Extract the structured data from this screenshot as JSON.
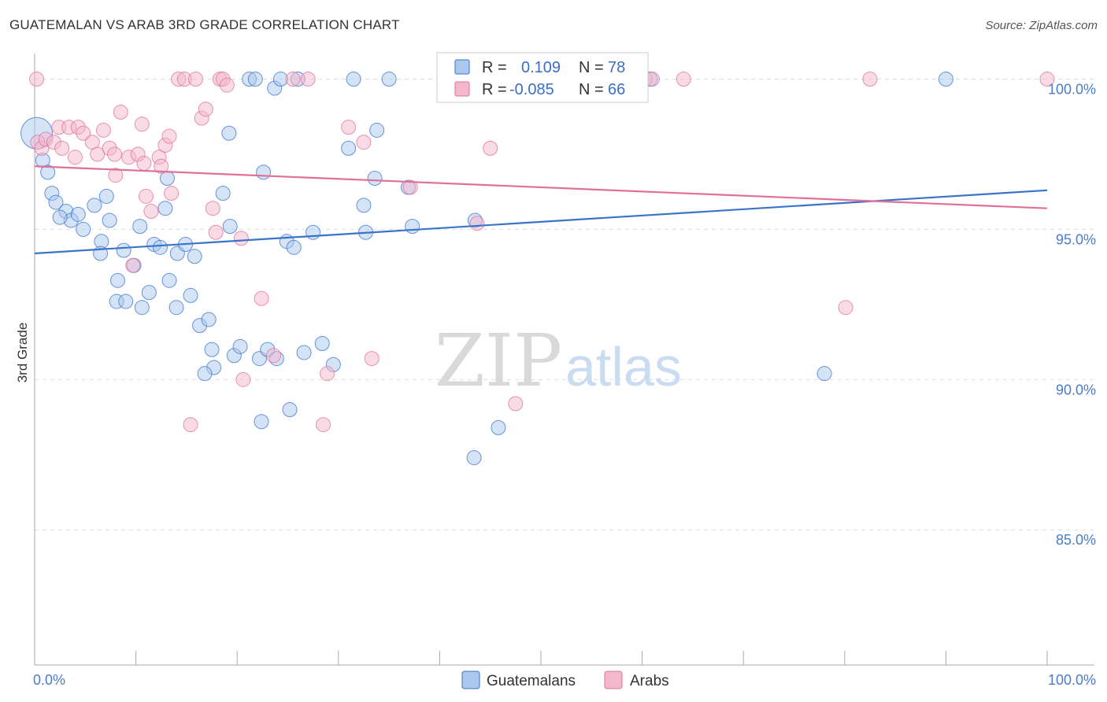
{
  "title": "GUATEMALAN VS ARAB 3RD GRADE CORRELATION CHART",
  "source": "Source: ZipAtlas.com",
  "watermark": {
    "zip": "ZIP",
    "atlas": "atlas"
  },
  "colors": {
    "blue": "#3a74c9",
    "blue_fill": "#aac8ee",
    "pink": "#e0709a",
    "pink_fill": "#f4b8cc",
    "tick": "#4a7cc9",
    "grid": "#dddddd"
  },
  "chart_data": {
    "type": "scatter",
    "title": "GUATEMALAN VS ARAB 3RD GRADE CORRELATION CHART",
    "xlabel": "",
    "ylabel": "3rd Grade",
    "xlim": [
      0,
      100
    ],
    "ylim": [
      80.5,
      100.8
    ],
    "x_tick_labels": [
      {
        "value": 0,
        "label": "0.0%"
      },
      {
        "value": 100,
        "label": "100.0%"
      }
    ],
    "y_ticks": [
      {
        "value": 85,
        "label": "85.0%"
      },
      {
        "value": 90,
        "label": "90.0%"
      },
      {
        "value": 95,
        "label": "95.0%"
      },
      {
        "value": 100,
        "label": "100.0%"
      }
    ],
    "grid": true,
    "legend_position": "top-center",
    "stats": [
      {
        "r_label": "R =",
        "r": "0.109",
        "n_label": "N =",
        "n": "78"
      },
      {
        "r_label": "R =",
        "r": "-0.085",
        "n_label": "N =",
        "n": "66"
      }
    ],
    "series": [
      {
        "name": "Guatemalans",
        "color": "#3a74c9",
        "trend": [
          [
            0,
            94.2
          ],
          [
            100,
            96.3
          ]
        ],
        "points": [
          [
            0.2,
            98.2
          ],
          [
            0.8,
            97.3
          ],
          [
            1.3,
            96.9
          ],
          [
            1.7,
            96.2
          ],
          [
            2.1,
            95.9
          ],
          [
            3.1,
            95.6
          ],
          [
            3.6,
            95.3
          ],
          [
            2.5,
            95.4
          ],
          [
            4.3,
            95.5
          ],
          [
            4.8,
            95.0
          ],
          [
            5.9,
            95.8
          ],
          [
            7.1,
            96.1
          ],
          [
            6.6,
            94.6
          ],
          [
            7.4,
            95.3
          ],
          [
            6.5,
            94.2
          ],
          [
            8.2,
            93.3
          ],
          [
            8.8,
            94.3
          ],
          [
            9.8,
            93.8
          ],
          [
            10.4,
            95.1
          ],
          [
            11.3,
            92.9
          ],
          [
            8.1,
            92.6
          ],
          [
            9.0,
            92.6
          ],
          [
            10.6,
            92.4
          ],
          [
            11.8,
            94.5
          ],
          [
            12.4,
            94.4
          ],
          [
            12.9,
            95.7
          ],
          [
            13.1,
            96.7
          ],
          [
            13.3,
            93.3
          ],
          [
            14.0,
            92.4
          ],
          [
            14.1,
            94.2
          ],
          [
            14.9,
            94.5
          ],
          [
            15.4,
            92.8
          ],
          [
            15.8,
            94.1
          ],
          [
            16.3,
            91.8
          ],
          [
            17.2,
            92.0
          ],
          [
            17.5,
            91.0
          ],
          [
            17.7,
            90.4
          ],
          [
            16.8,
            90.2
          ],
          [
            18.6,
            96.2
          ],
          [
            19.3,
            95.1
          ],
          [
            19.2,
            98.2
          ],
          [
            19.7,
            90.8
          ],
          [
            20.3,
            91.1
          ],
          [
            21.2,
            100.0
          ],
          [
            21.8,
            100.0
          ],
          [
            22.2,
            90.7
          ],
          [
            22.6,
            96.9
          ],
          [
            23.7,
            99.7
          ],
          [
            23.0,
            91.0
          ],
          [
            23.9,
            90.7
          ],
          [
            24.3,
            100.0
          ],
          [
            24.9,
            94.6
          ],
          [
            25.6,
            94.4
          ],
          [
            25.2,
            89.0
          ],
          [
            26.0,
            100.0
          ],
          [
            26.6,
            90.9
          ],
          [
            27.5,
            94.9
          ],
          [
            28.4,
            91.2
          ],
          [
            22.4,
            88.6
          ],
          [
            29.5,
            90.5
          ],
          [
            31.0,
            97.7
          ],
          [
            31.5,
            100.0
          ],
          [
            32.5,
            95.8
          ],
          [
            32.7,
            94.9
          ],
          [
            33.6,
            96.7
          ],
          [
            33.8,
            98.3
          ],
          [
            35.0,
            100.0
          ],
          [
            36.9,
            96.4
          ],
          [
            37.3,
            95.1
          ],
          [
            43.5,
            95.3
          ],
          [
            45.8,
            88.4
          ],
          [
            43.4,
            87.4
          ],
          [
            52.7,
            100.0
          ],
          [
            57.5,
            100.0
          ],
          [
            59.4,
            100.0
          ],
          [
            60.8,
            100.0
          ],
          [
            78.0,
            90.2
          ],
          [
            90.0,
            100.0
          ]
        ]
      },
      {
        "name": "Arabs",
        "color": "#e0709a",
        "trend": [
          [
            0,
            97.1
          ],
          [
            100,
            95.7
          ]
        ],
        "points": [
          [
            0.3,
            97.9
          ],
          [
            0.7,
            97.7
          ],
          [
            1.1,
            98.0
          ],
          [
            1.9,
            97.9
          ],
          [
            2.4,
            98.4
          ],
          [
            2.7,
            97.7
          ],
          [
            3.4,
            98.4
          ],
          [
            4.0,
            97.4
          ],
          [
            4.3,
            98.4
          ],
          [
            4.8,
            98.2
          ],
          [
            5.7,
            97.9
          ],
          [
            6.2,
            97.5
          ],
          [
            6.8,
            98.3
          ],
          [
            7.4,
            97.7
          ],
          [
            7.9,
            97.5
          ],
          [
            8.0,
            96.8
          ],
          [
            8.5,
            98.9
          ],
          [
            9.3,
            97.4
          ],
          [
            9.7,
            93.8
          ],
          [
            10.2,
            97.5
          ],
          [
            10.6,
            98.5
          ],
          [
            10.8,
            97.2
          ],
          [
            11.0,
            96.1
          ],
          [
            11.5,
            95.6
          ],
          [
            12.3,
            97.4
          ],
          [
            12.5,
            97.1
          ],
          [
            12.9,
            97.8
          ],
          [
            13.3,
            98.1
          ],
          [
            13.5,
            96.2
          ],
          [
            14.2,
            100.0
          ],
          [
            14.8,
            100.0
          ],
          [
            15.4,
            88.5
          ],
          [
            15.9,
            100.0
          ],
          [
            16.5,
            98.7
          ],
          [
            16.9,
            99.0
          ],
          [
            17.6,
            95.7
          ],
          [
            17.9,
            94.9
          ],
          [
            18.3,
            100.0
          ],
          [
            18.6,
            100.0
          ],
          [
            19.0,
            99.8
          ],
          [
            20.4,
            94.7
          ],
          [
            20.6,
            90.0
          ],
          [
            22.4,
            92.7
          ],
          [
            23.6,
            90.8
          ],
          [
            25.5,
            100.0
          ],
          [
            27.0,
            100.0
          ],
          [
            28.5,
            88.5
          ],
          [
            28.9,
            90.2
          ],
          [
            31.0,
            98.4
          ],
          [
            32.5,
            97.9
          ],
          [
            33.3,
            90.7
          ],
          [
            37.1,
            96.4
          ],
          [
            43.7,
            95.2
          ],
          [
            45.0,
            97.7
          ],
          [
            47.5,
            89.2
          ],
          [
            51.9,
            100.0
          ],
          [
            53.7,
            100.0
          ],
          [
            55.5,
            100.0
          ],
          [
            57.7,
            100.0
          ],
          [
            60.3,
            100.0
          ],
          [
            61.0,
            100.0
          ],
          [
            64.1,
            100.0
          ],
          [
            80.1,
            92.4
          ],
          [
            82.5,
            100.0
          ],
          [
            100.0,
            100.0
          ],
          [
            0.2,
            100.0
          ]
        ]
      }
    ]
  }
}
